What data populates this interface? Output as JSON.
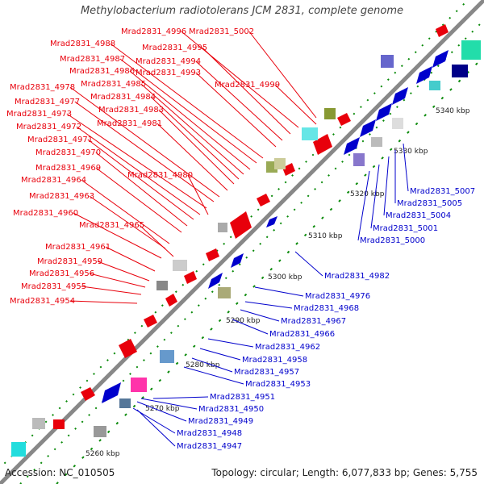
{
  "title": "Methylobacterium radiotolerans JCM 2831, complete genome",
  "footer": {
    "accession": "Accession: NC_010505",
    "summary": "Topology: circular; Length: 6,077,833 bp; Genes: 5,755"
  },
  "colors": {
    "forward": "#e8000b",
    "reverse": "#0000cc",
    "backbone": "#888888",
    "tick": "#0a8a0a"
  },
  "scale_labels": [
    "5260 kbp",
    "5270 kbp",
    "5280 kbp",
    "5290 kbp",
    "5300 kbp",
    "5310 kbp",
    "5320 kbp",
    "5330 kbp",
    "5340 kbp"
  ],
  "forward_genes": [
    "Mrad2831_4954",
    "Mrad2831_4955",
    "Mrad2831_4956",
    "Mrad2831_4959",
    "Mrad2831_4961",
    "Mrad2831_4965",
    "Mrad2831_4960",
    "Mrad2831_4963",
    "Mrad2831_4964",
    "Mrad2831_4969",
    "Mrad2831_4980",
    "Mrad2831_4970",
    "Mrad2831_4971",
    "Mrad2831_4972",
    "Mrad2831_4973",
    "Mrad2831_4977",
    "Mrad2831_4978",
    "Mrad2831_4981",
    "Mrad2831_4983",
    "Mrad2831_4984",
    "Mrad2831_4985",
    "Mrad2831_4986",
    "Mrad2831_4987",
    "Mrad2831_4988",
    "Mrad2831_4993",
    "Mrad2831_4994",
    "Mrad2831_4995",
    "Mrad2831_4996",
    "Mrad2831_4999",
    "Mrad2831_5002"
  ],
  "reverse_genes": [
    "Mrad2831_4947",
    "Mrad2831_4948",
    "Mrad2831_4949",
    "Mrad2831_4950",
    "Mrad2831_4951",
    "Mrad2831_4953",
    "Mrad2831_4957",
    "Mrad2831_4958",
    "Mrad2831_4962",
    "Mrad2831_4966",
    "Mrad2831_4967",
    "Mrad2831_4968",
    "Mrad2831_4976",
    "Mrad2831_4982",
    "Mrad2831_5000",
    "Mrad2831_5001",
    "Mrad2831_5004",
    "Mrad2831_5005",
    "Mrad2831_5007"
  ]
}
